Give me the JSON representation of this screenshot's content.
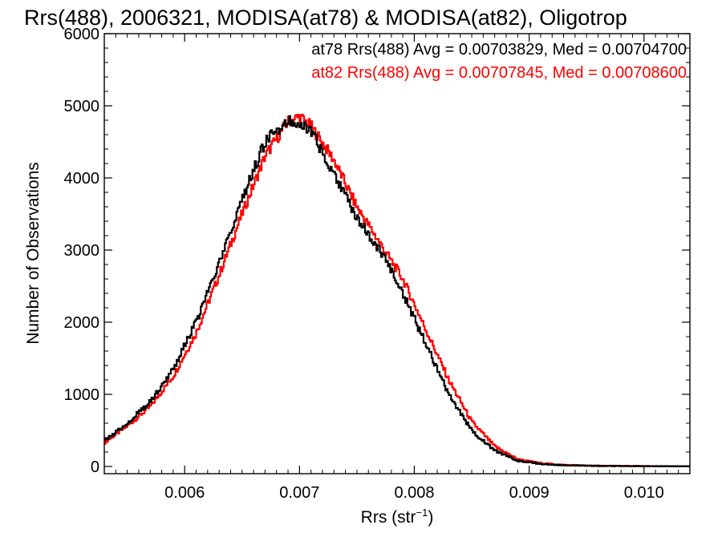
{
  "chart_data": {
    "type": "histogram",
    "title": "Rrs(488), 2006321, MODISA(at78) & MODISA(at82), Oligotrop",
    "xlabel_base": "Rrs (str",
    "xlabel_sup": "−1",
    "xlabel_close": ")",
    "ylabel": "Number of Observations",
    "xlim": [
      0.0053,
      0.0104
    ],
    "ylim": [
      -100,
      6000
    ],
    "xticks": [
      0.006,
      0.007,
      0.008,
      0.009,
      0.01
    ],
    "xtick_labels": [
      "0.006",
      "0.007",
      "0.008",
      "0.009",
      "0.010"
    ],
    "yticks": [
      0,
      1000,
      2000,
      3000,
      4000,
      5000,
      6000
    ],
    "ytick_labels": [
      "0",
      "1000",
      "2000",
      "3000",
      "4000",
      "5000",
      "6000"
    ],
    "legend_placement": "top-right",
    "series": [
      {
        "name": "at78",
        "legend_text": "at78 Rrs(488) Avg = 0.00703829, Med = 0.00704700",
        "color": "#000000",
        "x": [
          0.0053,
          0.0055,
          0.0057,
          0.0059,
          0.0061,
          0.0063,
          0.0065,
          0.0067,
          0.0069,
          0.007,
          0.0071,
          0.0073,
          0.0075,
          0.0077,
          0.0079,
          0.0081,
          0.0083,
          0.0085,
          0.0087,
          0.0089,
          0.0091,
          0.0093,
          0.0096,
          0.01,
          0.0104
        ],
        "counts": [
          350,
          600,
          900,
          1350,
          2000,
          2800,
          3700,
          4500,
          4800,
          4780,
          4650,
          4050,
          3450,
          3000,
          2400,
          1700,
          1000,
          500,
          220,
          80,
          35,
          18,
          8,
          4,
          2
        ]
      },
      {
        "name": "at82",
        "legend_text": "at82 Rrs(488) Avg = 0.00707845, Med = 0.00708600",
        "color": "#ff0000",
        "x": [
          0.0053,
          0.0055,
          0.0057,
          0.0059,
          0.0061,
          0.0063,
          0.0065,
          0.0067,
          0.0069,
          0.007,
          0.0071,
          0.0073,
          0.0075,
          0.0077,
          0.0079,
          0.0081,
          0.0083,
          0.0085,
          0.0087,
          0.0089,
          0.0091,
          0.0093,
          0.0096,
          0.01,
          0.0104
        ],
        "counts": [
          330,
          560,
          830,
          1250,
          1850,
          2650,
          3500,
          4300,
          4780,
          4850,
          4720,
          4250,
          3600,
          3100,
          2600,
          1900,
          1200,
          620,
          280,
          100,
          45,
          22,
          10,
          5,
          2
        ]
      }
    ]
  }
}
